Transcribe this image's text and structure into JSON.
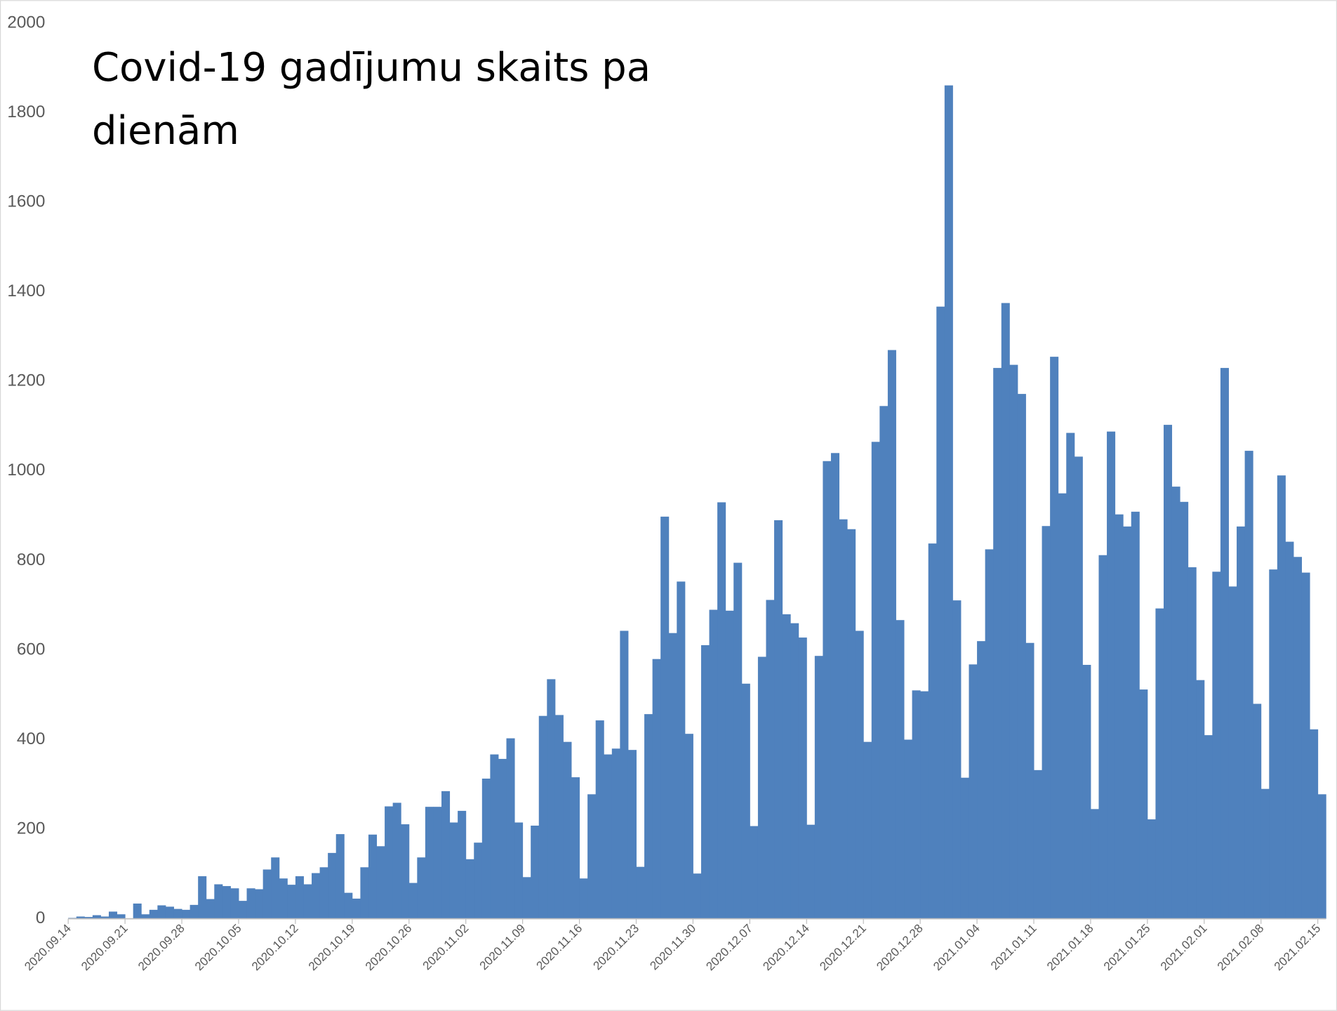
{
  "chart_data": {
    "type": "bar",
    "title": "Covid-19 gadījumu skaits pa dienām",
    "color": "#4f81bd",
    "categories": [
      "2020.09.14",
      null,
      null,
      null,
      null,
      null,
      null,
      "2020.09.21",
      null,
      null,
      null,
      null,
      null,
      null,
      "2020.09.28",
      null,
      null,
      null,
      null,
      null,
      null,
      "2020.10.05",
      null,
      null,
      null,
      null,
      null,
      null,
      "2020.10.12",
      null,
      null,
      null,
      null,
      null,
      null,
      "2020.10.19",
      null,
      null,
      null,
      null,
      null,
      null,
      "2020.10.26",
      null,
      null,
      null,
      null,
      null,
      null,
      "2020.11.02",
      null,
      null,
      null,
      null,
      null,
      null,
      "2020.11.09",
      null,
      null,
      null,
      null,
      null,
      null,
      "2020.11.16",
      null,
      null,
      null,
      null,
      null,
      null,
      "2020.11.23",
      null,
      null,
      null,
      null,
      null,
      null,
      "2020.11.30",
      null,
      null,
      null,
      null,
      null,
      null,
      "2020.12.07",
      null,
      null,
      null,
      null,
      null,
      null,
      "2020.12.14",
      null,
      null,
      null,
      null,
      null,
      null,
      "2020.12.21",
      null,
      null,
      null,
      null,
      null,
      null,
      "2020.12.28",
      null,
      null,
      null,
      null,
      null,
      null,
      "2021.01.04",
      null,
      null,
      null,
      null,
      null,
      null,
      "2021.01.11",
      null,
      null,
      null,
      null,
      null,
      null,
      "2021.01.18",
      null,
      null,
      null,
      null,
      null,
      null,
      "2021.01.25",
      null,
      null,
      null,
      null,
      null,
      null,
      "2021.02.01",
      null,
      null,
      null,
      null,
      null,
      null,
      "2021.02.08",
      null,
      null,
      null,
      null,
      null,
      null,
      "2021.02.15"
    ],
    "values": [
      2,
      5,
      4,
      8,
      5,
      16,
      10,
      1,
      34,
      10,
      20,
      30,
      27,
      22,
      20,
      31,
      95,
      44,
      77,
      73,
      68,
      40,
      68,
      66,
      110,
      137,
      90,
      76,
      95,
      77,
      102,
      115,
      147,
      189,
      58,
      45,
      115,
      188,
      162,
      251,
      259,
      211,
      80,
      137,
      250,
      250,
      285,
      215,
      241,
      133,
      170,
      313,
      367,
      357,
      403,
      215,
      93,
      208,
      453,
      535,
      455,
      395,
      316,
      90,
      278,
      443,
      367,
      380,
      643,
      377,
      116,
      457,
      580,
      898,
      638,
      753,
      413,
      101,
      611,
      690,
      930,
      688,
      795,
      525,
      207,
      585,
      712,
      890,
      680,
      660,
      628,
      210,
      587,
      1022,
      1040,
      892,
      870,
      643,
      395,
      1065,
      1145,
      1270,
      667,
      400,
      510,
      508,
      838,
      1367,
      1861,
      711,
      315,
      568,
      620,
      825,
      1230,
      1375,
      1237,
      1172,
      616,
      332,
      877,
      1255,
      950,
      1085,
      1032,
      567,
      245,
      812,
      1088,
      903,
      876,
      909,
      512,
      222,
      693,
      1103,
      965,
      931,
      785,
      533,
      410,
      775,
      1230,
      742,
      876,
      1045,
      480,
      290,
      780,
      990,
      842,
      808,
      773,
      423,
      278
    ],
    "ylim": [
      0,
      2000
    ],
    "yticks": [
      0,
      200,
      400,
      600,
      800,
      1000,
      1200,
      1400,
      1600,
      1800,
      2000
    ],
    "grid": false
  }
}
